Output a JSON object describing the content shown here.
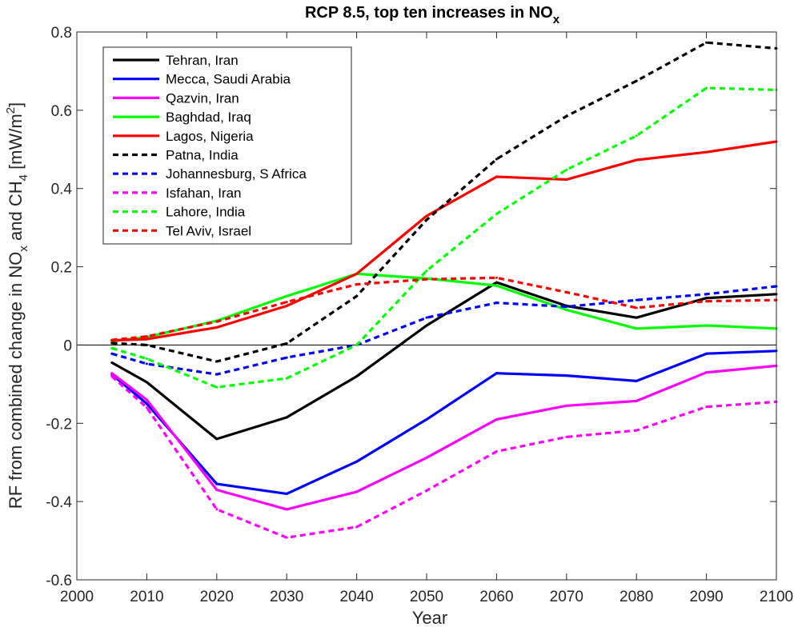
{
  "chart_data": {
    "type": "line",
    "title": "RCP 8.5, top ten increases in NO",
    "title_subscript": "x",
    "xlabel": "Year",
    "ylabel": {
      "t1": "RF from combined change in NO",
      "s1": "x",
      "t2": " and CH",
      "s2": "4",
      "t3": " [mW/m",
      "sup": "2",
      "t4": "]"
    },
    "xlim": [
      2000,
      2100
    ],
    "ylim": [
      -0.6,
      0.8
    ],
    "xticks": [
      2000,
      2010,
      2020,
      2030,
      2040,
      2050,
      2060,
      2070,
      2080,
      2090,
      2100
    ],
    "xtick_labels": [
      "2000",
      "2010",
      "2020",
      "2030",
      "2040",
      "2050",
      "2060",
      "2070",
      "2080",
      "2090",
      "2100"
    ],
    "yticks": [
      -0.6,
      -0.4,
      -0.2,
      0,
      0.2,
      0.4,
      0.6,
      0.8
    ],
    "ytick_labels": [
      "-0.6",
      "-0.4",
      "-0.2",
      "0",
      "0.2",
      "0.4",
      "0.6",
      "0.8"
    ],
    "zero_line": true,
    "grid": false,
    "legend_position": "top-left",
    "x": [
      2005,
      2010,
      2020,
      2030,
      2040,
      2050,
      2060,
      2070,
      2080,
      2090,
      2100
    ],
    "series": [
      {
        "name": "Tehran, Iran",
        "color": "#000000",
        "dash": "solid",
        "values": [
          -0.045,
          -0.095,
          -0.24,
          -0.185,
          -0.08,
          0.05,
          0.16,
          0.1,
          0.07,
          0.12,
          0.13
        ]
      },
      {
        "name": "Mecca, Saudi Arabia",
        "color": "#0000ff",
        "dash": "solid",
        "values": [
          -0.075,
          -0.15,
          -0.355,
          -0.38,
          -0.298,
          -0.19,
          -0.072,
          -0.078,
          -0.092,
          -0.022,
          -0.015
        ]
      },
      {
        "name": "Qazvin, Iran",
        "color": "#ff00ff",
        "dash": "solid",
        "values": [
          -0.072,
          -0.14,
          -0.37,
          -0.42,
          -0.375,
          -0.288,
          -0.19,
          -0.155,
          -0.143,
          -0.07,
          -0.053
        ]
      },
      {
        "name": "Baghdad, Iraq",
        "color": "#00ff00",
        "dash": "solid",
        "values": [
          0.01,
          0.02,
          0.062,
          0.125,
          0.182,
          0.17,
          0.152,
          0.09,
          0.042,
          0.05,
          0.042
        ]
      },
      {
        "name": "Lagos, Nigeria",
        "color": "#ff0000",
        "dash": "solid",
        "values": [
          0.012,
          0.015,
          0.045,
          0.1,
          0.182,
          0.33,
          0.43,
          0.423,
          0.473,
          0.493,
          0.52
        ]
      },
      {
        "name": "Patna, India",
        "color": "#000000",
        "dash": "dashed",
        "values": [
          0.005,
          0.0,
          -0.042,
          0.004,
          0.125,
          0.32,
          0.475,
          0.585,
          0.675,
          0.773,
          0.758
        ]
      },
      {
        "name": "Johannesburg, S Africa",
        "color": "#0000ff",
        "dash": "dashed",
        "values": [
          -0.022,
          -0.048,
          -0.075,
          -0.032,
          0.0,
          0.07,
          0.108,
          0.098,
          0.115,
          0.13,
          0.15
        ]
      },
      {
        "name": "Isfahan, Iran",
        "color": "#ff00ff",
        "dash": "dashed",
        "values": [
          -0.08,
          -0.16,
          -0.42,
          -0.492,
          -0.465,
          -0.372,
          -0.272,
          -0.235,
          -0.218,
          -0.158,
          -0.145
        ]
      },
      {
        "name": "Lahore, India",
        "color": "#00ff00",
        "dash": "dashed",
        "values": [
          -0.008,
          -0.035,
          -0.108,
          -0.085,
          0.0,
          0.19,
          0.335,
          0.448,
          0.535,
          0.657,
          0.652
        ]
      },
      {
        "name": "Tel Aviv, Israel",
        "color": "#ff0000",
        "dash": "dashed",
        "values": [
          0.013,
          0.022,
          0.06,
          0.11,
          0.155,
          0.168,
          0.172,
          0.135,
          0.095,
          0.112,
          0.115
        ]
      }
    ]
  }
}
